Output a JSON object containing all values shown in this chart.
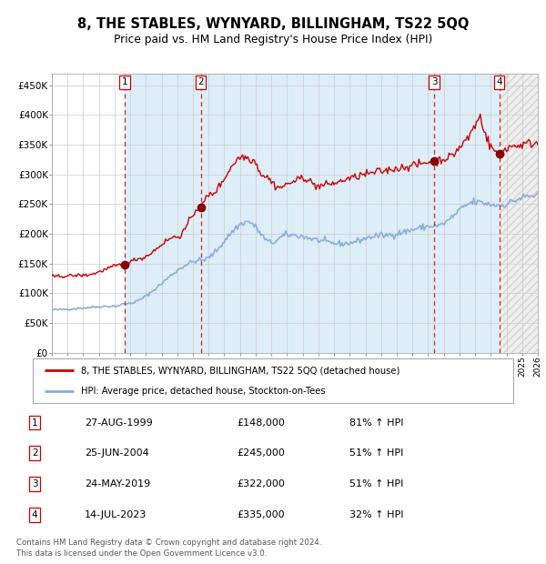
{
  "title": "8, THE STABLES, WYNYARD, BILLINGHAM, TS22 5QQ",
  "subtitle": "Price paid vs. HM Land Registry's House Price Index (HPI)",
  "legend_line1": "8, THE STABLES, WYNYARD, BILLINGHAM, TS22 5QQ (detached house)",
  "legend_line2": "HPI: Average price, detached house, Stockton-on-Tees",
  "footer": "Contains HM Land Registry data © Crown copyright and database right 2024.\nThis data is licensed under the Open Government Licence v3.0.",
  "table_rows": [
    {
      "num": 1,
      "date": "27-AUG-1999",
      "price": "£148,000",
      "info": "81% ↑ HPI"
    },
    {
      "num": 2,
      "date": "25-JUN-2004",
      "price": "£245,000",
      "info": "51% ↑ HPI"
    },
    {
      "num": 3,
      "date": "24-MAY-2019",
      "price": "£322,000",
      "info": "51% ↑ HPI"
    },
    {
      "num": 4,
      "date": "14-JUL-2023",
      "price": "£335,000",
      "info": "32% ↑ HPI"
    }
  ],
  "hpi_color": "#88aadd",
  "price_color": "#cc0000",
  "dot_color": "#880000",
  "vline_color": "#cc0000",
  "shade_color": "#ddeef8",
  "hatch_color": "#d8d8d8",
  "grid_color": "#cccccc",
  "ylim": [
    0,
    470000
  ],
  "yticks": [
    0,
    50000,
    100000,
    150000,
    200000,
    250000,
    300000,
    350000,
    400000,
    450000
  ],
  "x_start_year": 1995,
  "x_end_year": 2026,
  "transactions": [
    {
      "date_yr": 1999.648,
      "price": 148000
    },
    {
      "date_yr": 2004.493,
      "price": 245000
    },
    {
      "date_yr": 2019.393,
      "price": 322000
    },
    {
      "date_yr": 2023.536,
      "price": 335000
    }
  ],
  "hpi_milestones": {
    "1995.0": 72000,
    "1999.0": 78000,
    "1999.7": 82000,
    "2004.5": 155000,
    "2007.5": 220000,
    "2009.0": 185000,
    "2010.0": 198000,
    "2013.5": 183000,
    "2016.0": 197000,
    "2019.5": 213000,
    "2022.0": 253000,
    "2023.5": 248000,
    "2025.5": 263000,
    "2026.0": 265000
  },
  "price_milestones": {
    "1995.0": 128000,
    "1997.0": 130000,
    "1999.648": 148000,
    "2000.5": 158000,
    "2003.0": 195000,
    "2004.493": 245000,
    "2005.0": 265000,
    "2007.2": 330000,
    "2007.8": 325000,
    "2008.5": 298000,
    "2009.5": 278000,
    "2010.5": 288000,
    "2011.0": 295000,
    "2012.0": 280000,
    "2013.0": 285000,
    "2014.0": 293000,
    "2015.0": 300000,
    "2016.0": 305000,
    "2017.0": 310000,
    "2018.0": 315000,
    "2019.393": 322000,
    "2019.8": 325000,
    "2020.5": 330000,
    "2021.0": 345000,
    "2021.5": 360000,
    "2022.0": 382000,
    "2022.3": 398000,
    "2022.5": 382000,
    "2022.8": 358000,
    "2023.0": 345000,
    "2023.536": 335000,
    "2023.8": 340000,
    "2024.0": 345000,
    "2024.5": 348000,
    "2025.5": 352000,
    "2026.0": 353000
  }
}
